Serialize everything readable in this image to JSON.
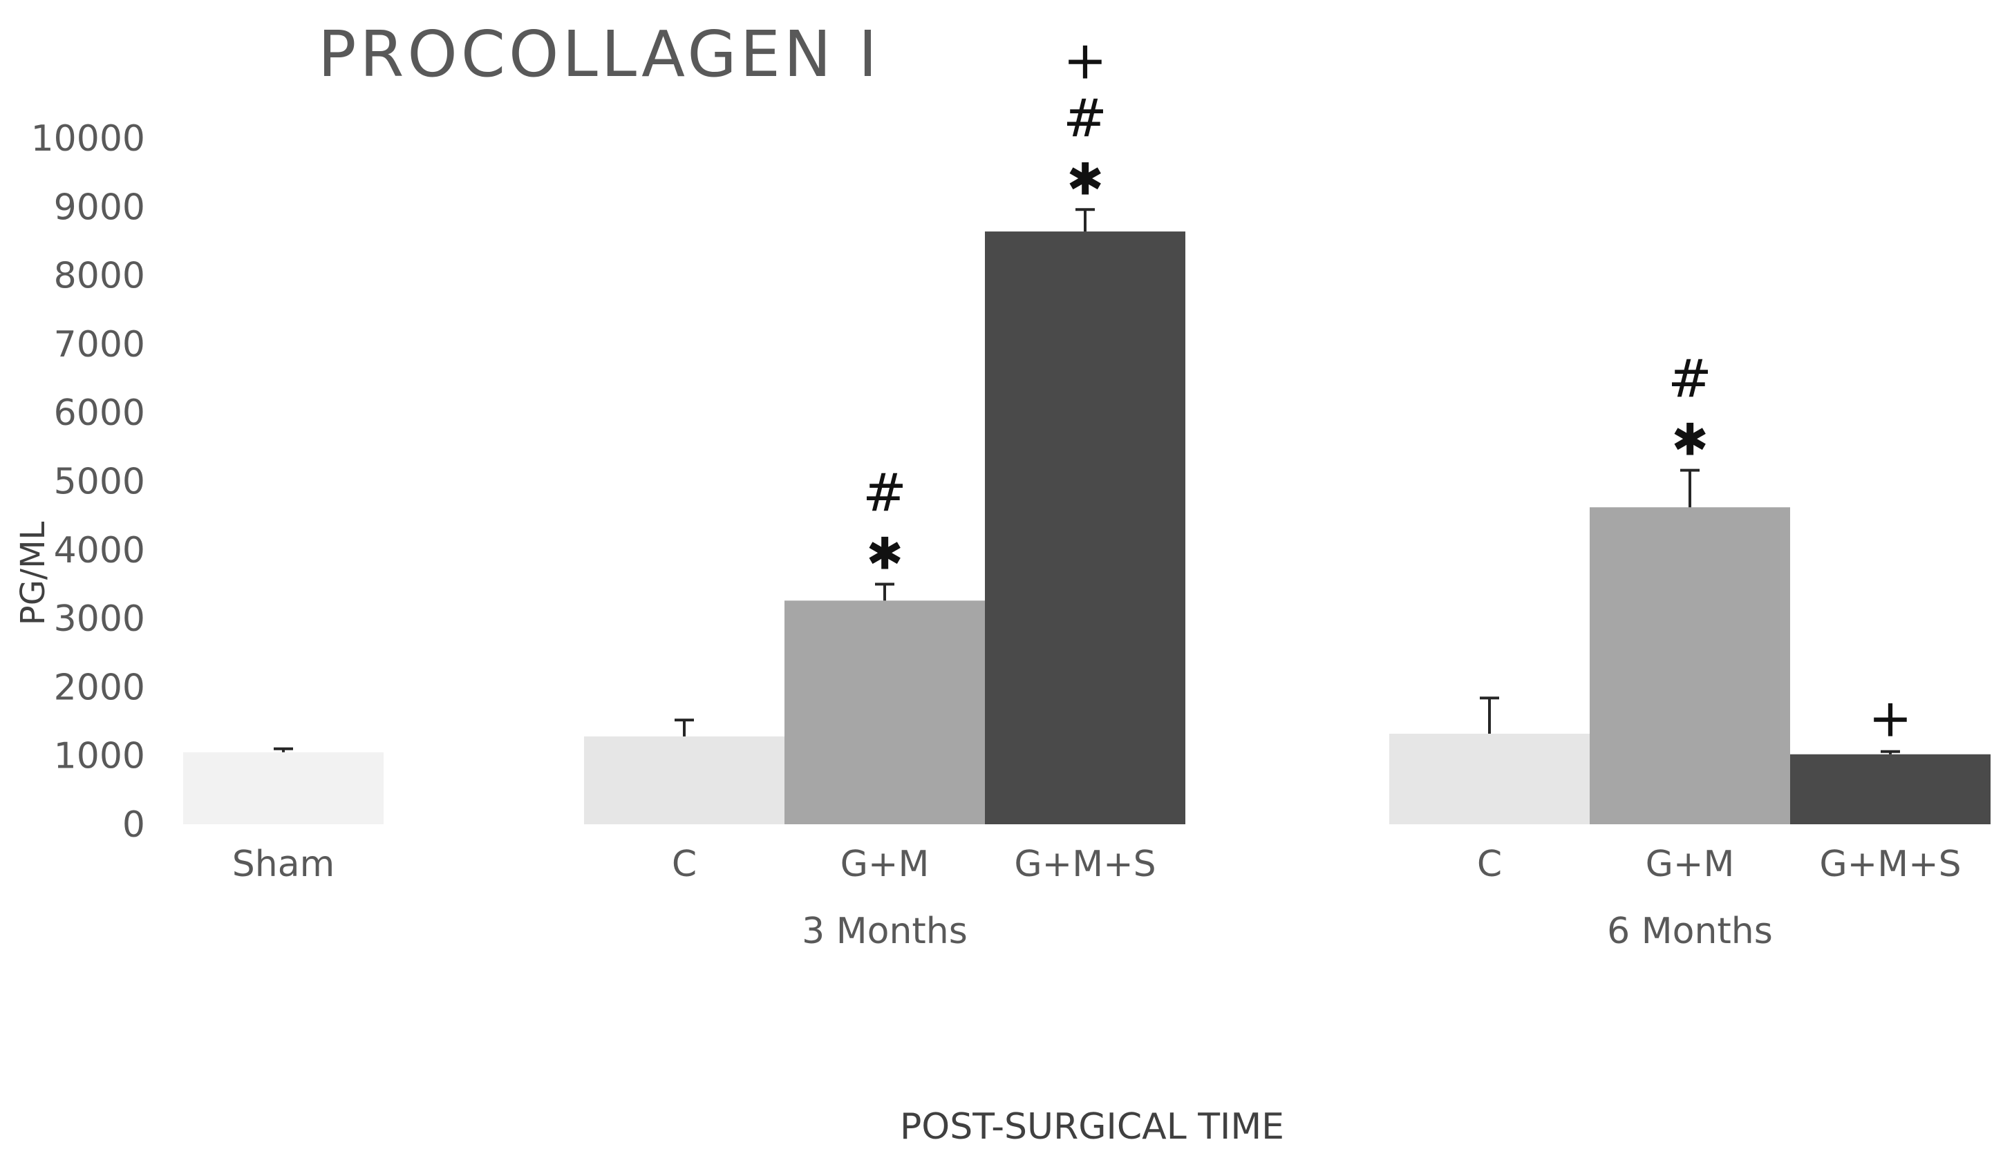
{
  "chart_data": {
    "type": "bar",
    "title": "PROCOLLAGEN I",
    "xlabel": "POST-SURGICAL TIME",
    "ylabel": "PG/ML",
    "ylim": [
      0,
      10000
    ],
    "yticks": [
      0,
      1000,
      2000,
      3000,
      4000,
      5000,
      6000,
      7000,
      8000,
      9000,
      10000
    ],
    "grid": false,
    "legend": "none",
    "groups": [
      {
        "label": "",
        "bars": [
          {
            "category": "Sham",
            "value": 1050,
            "error": 50,
            "color": "#f2f2f2",
            "marks": []
          }
        ]
      },
      {
        "label": "3 Months",
        "bars": [
          {
            "category": "C",
            "value": 1280,
            "error": 240,
            "color": "#e6e6e6",
            "marks": []
          },
          {
            "category": "G+M",
            "value": 3260,
            "error": 240,
            "color": "#a6a6a6",
            "marks": [
              "✱",
              "#"
            ]
          },
          {
            "category": "G+M+S",
            "value": 8640,
            "error": 320,
            "color": "#4a4a4a",
            "marks": [
              "✱",
              "#",
              "+"
            ]
          }
        ]
      },
      {
        "label": "6 Months",
        "bars": [
          {
            "category": "C",
            "value": 1320,
            "error": 520,
            "color": "#e6e6e6",
            "marks": []
          },
          {
            "category": "G+M",
            "value": 4620,
            "error": 540,
            "color": "#a6a6a6",
            "marks": [
              "✱",
              "#"
            ]
          },
          {
            "category": "G+M+S",
            "value": 1020,
            "error": 40,
            "color": "#4a4a4a",
            "marks": [
              "+"
            ]
          }
        ]
      }
    ]
  }
}
